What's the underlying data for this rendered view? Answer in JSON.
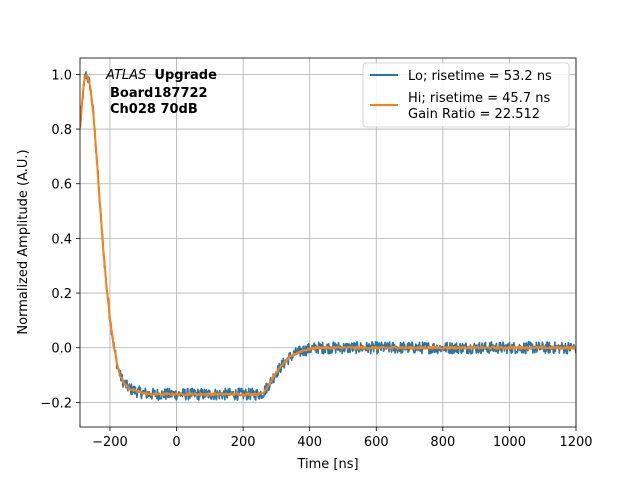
{
  "chart_data": {
    "type": "line",
    "title": "",
    "xlabel": "Time [ns]",
    "ylabel": "Normalized Amplitude (A.U.)",
    "xlim": [
      -290,
      1200
    ],
    "ylim": [
      -0.29,
      1.06
    ],
    "xticks": [
      -200,
      0,
      200,
      400,
      600,
      800,
      1000,
      1200
    ],
    "xtick_labels": [
      "−200",
      "0",
      "200",
      "400",
      "600",
      "800",
      "1000",
      "1200"
    ],
    "yticks": [
      -0.2,
      0.0,
      0.2,
      0.4,
      0.6,
      0.8,
      1.0
    ],
    "ytick_labels": [
      "−0.2",
      "0.0",
      "0.2",
      "0.4",
      "0.6",
      "0.8",
      "1.0"
    ],
    "grid": true,
    "legend_position": "top-right",
    "series": [
      {
        "name": "Lo; risetime = 53.2 ns",
        "color": "#1f77b4",
        "noise_amplitude": 0.022,
        "x": [
          -290,
          -280,
          -275,
          -270,
          -260,
          -250,
          -240,
          -230,
          -220,
          -210,
          -200,
          -190,
          -180,
          -170,
          -160,
          -150,
          -140,
          -120,
          -100,
          -80,
          -50,
          0,
          50,
          100,
          150,
          200,
          230,
          245,
          260,
          280,
          300,
          320,
          340,
          360,
          380,
          400,
          420,
          450,
          500,
          600,
          700,
          800,
          900,
          1000,
          1100,
          1200
        ],
        "y": [
          0.8,
          0.94,
          0.99,
          1.0,
          0.96,
          0.86,
          0.7,
          0.52,
          0.36,
          0.22,
          0.11,
          0.02,
          -0.05,
          -0.1,
          -0.125,
          -0.14,
          -0.15,
          -0.16,
          -0.165,
          -0.17,
          -0.17,
          -0.17,
          -0.17,
          -0.17,
          -0.17,
          -0.17,
          -0.17,
          -0.17,
          -0.165,
          -0.13,
          -0.09,
          -0.06,
          -0.035,
          -0.02,
          -0.01,
          -0.005,
          0.0,
          0.0,
          0.0,
          0.0,
          0.0,
          0.0,
          0.0,
          0.0,
          0.0,
          0.0
        ]
      },
      {
        "name": "Hi; risetime = 45.7 ns\n Gain Ratio = 22.512",
        "color": "#ff7f0e",
        "noise_amplitude": 0.004,
        "x": [
          -290,
          -280,
          -275,
          -270,
          -260,
          -250,
          -240,
          -230,
          -220,
          -210,
          -200,
          -190,
          -180,
          -170,
          -160,
          -150,
          -140,
          -120,
          -100,
          -80,
          -50,
          0,
          50,
          100,
          150,
          200,
          230,
          245,
          260,
          280,
          300,
          320,
          340,
          360,
          380,
          400,
          420,
          450,
          500,
          600,
          700,
          800,
          900,
          1000,
          1100,
          1200
        ],
        "y": [
          0.8,
          0.95,
          0.99,
          1.0,
          0.96,
          0.86,
          0.7,
          0.52,
          0.36,
          0.22,
          0.11,
          0.02,
          -0.05,
          -0.1,
          -0.125,
          -0.14,
          -0.15,
          -0.16,
          -0.165,
          -0.17,
          -0.17,
          -0.17,
          -0.17,
          -0.17,
          -0.17,
          -0.17,
          -0.17,
          -0.17,
          -0.165,
          -0.13,
          -0.09,
          -0.06,
          -0.035,
          -0.02,
          -0.01,
          -0.005,
          0.0,
          0.0,
          0.0,
          0.0,
          0.0,
          0.0,
          0.0,
          0.0,
          0.0,
          0.0
        ]
      }
    ],
    "annotation": {
      "experiment": "ATLAS",
      "experiment_suffix": "Upgrade",
      "line2": "Board187722",
      "line3": "Ch028 70dB"
    }
  }
}
